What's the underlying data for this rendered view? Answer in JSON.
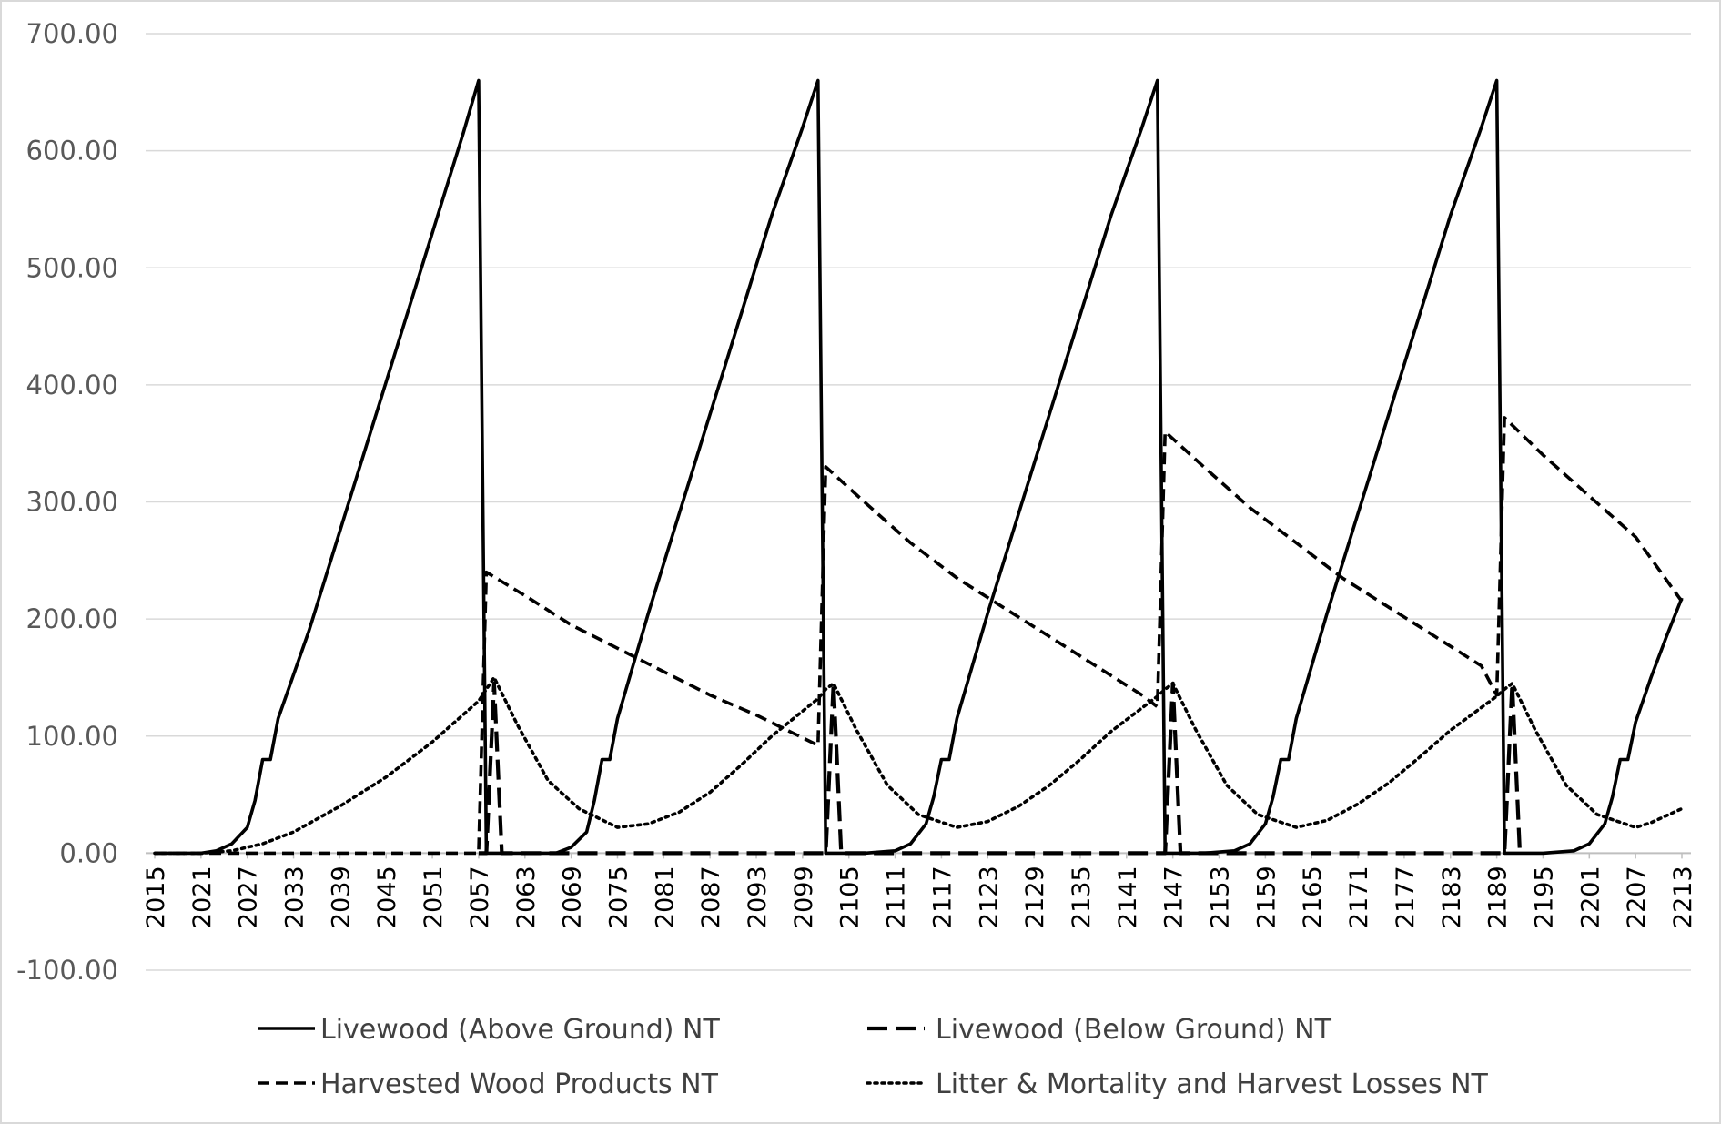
{
  "chart_data": {
    "type": "line",
    "title": "",
    "xlabel": "",
    "ylabel": "",
    "ylim": [
      -100,
      700
    ],
    "yticks": [
      "-100.00",
      "0.00",
      "100.00",
      "200.00",
      "300.00",
      "400.00",
      "500.00",
      "600.00",
      "700.00"
    ],
    "xlim": [
      2015,
      2213
    ],
    "xticks": [
      "2015",
      "2021",
      "2027",
      "2033",
      "2039",
      "2045",
      "2051",
      "2057",
      "2063",
      "2069",
      "2075",
      "2081",
      "2087",
      "2093",
      "2099",
      "2105",
      "2111",
      "2117",
      "2123",
      "2129",
      "2135",
      "2141",
      "2147",
      "2153",
      "2159",
      "2165",
      "2171",
      "2177",
      "2183",
      "2189",
      "2195",
      "2201",
      "2207",
      "2213"
    ],
    "grid": "horizontal",
    "legend_position": "bottom",
    "colors": {
      "series": "#000000",
      "grid": "#d9d9d9",
      "axis": "#bfbfbf",
      "tick_text": "#595959"
    },
    "series": [
      {
        "name": "Livewood (Above Ground) NT",
        "style": "solid",
        "points": [
          [
            2015,
            0
          ],
          [
            2021,
            0
          ],
          [
            2023,
            2
          ],
          [
            2025,
            8
          ],
          [
            2027,
            22
          ],
          [
            2028,
            45
          ],
          [
            2029,
            80
          ],
          [
            2030,
            80
          ],
          [
            2031,
            115
          ],
          [
            2035,
            190
          ],
          [
            2039,
            275
          ],
          [
            2043,
            360
          ],
          [
            2047,
            445
          ],
          [
            2051,
            530
          ],
          [
            2055,
            615
          ],
          [
            2057,
            660
          ],
          [
            2058,
            0
          ],
          [
            2063,
            0
          ],
          [
            2067,
            0
          ],
          [
            2069,
            5
          ],
          [
            2071,
            18
          ],
          [
            2072,
            45
          ],
          [
            2073,
            80
          ],
          [
            2074,
            80
          ],
          [
            2075,
            115
          ],
          [
            2079,
            205
          ],
          [
            2083,
            290
          ],
          [
            2087,
            375
          ],
          [
            2091,
            460
          ],
          [
            2095,
            545
          ],
          [
            2099,
            620
          ],
          [
            2101,
            660
          ],
          [
            2102,
            0
          ],
          [
            2107,
            0
          ],
          [
            2111,
            2
          ],
          [
            2113,
            8
          ],
          [
            2115,
            25
          ],
          [
            2116,
            48
          ],
          [
            2117,
            80
          ],
          [
            2118,
            80
          ],
          [
            2119,
            115
          ],
          [
            2123,
            205
          ],
          [
            2127,
            290
          ],
          [
            2131,
            375
          ],
          [
            2135,
            460
          ],
          [
            2139,
            545
          ],
          [
            2143,
            620
          ],
          [
            2145,
            660
          ],
          [
            2146,
            0
          ],
          [
            2151,
            0
          ],
          [
            2155,
            2
          ],
          [
            2157,
            8
          ],
          [
            2159,
            25
          ],
          [
            2160,
            48
          ],
          [
            2161,
            80
          ],
          [
            2162,
            80
          ],
          [
            2163,
            115
          ],
          [
            2167,
            205
          ],
          [
            2171,
            290
          ],
          [
            2175,
            375
          ],
          [
            2179,
            460
          ],
          [
            2183,
            545
          ],
          [
            2187,
            620
          ],
          [
            2189,
            660
          ],
          [
            2190,
            0
          ],
          [
            2195,
            0
          ],
          [
            2199,
            2
          ],
          [
            2201,
            8
          ],
          [
            2203,
            25
          ],
          [
            2204,
            48
          ],
          [
            2205,
            80
          ],
          [
            2206,
            80
          ],
          [
            2207,
            112
          ],
          [
            2209,
            150
          ],
          [
            2211,
            185
          ],
          [
            2213,
            218
          ]
        ]
      },
      {
        "name": "Livewood (Below Ground) NT",
        "style": "long-dash",
        "points": [
          [
            2057,
            0
          ],
          [
            2058,
            0
          ],
          [
            2059,
            145
          ],
          [
            2060,
            0
          ],
          [
            2101,
            0
          ],
          [
            2102,
            0
          ],
          [
            2103,
            145
          ],
          [
            2104,
            0
          ],
          [
            2145,
            0
          ],
          [
            2146,
            0
          ],
          [
            2147,
            145
          ],
          [
            2148,
            0
          ],
          [
            2189,
            0
          ],
          [
            2190,
            0
          ],
          [
            2191,
            145
          ],
          [
            2192,
            0
          ]
        ]
      },
      {
        "name": "Harvested Wood Products NT",
        "style": "dash",
        "points": [
          [
            2015,
            0
          ],
          [
            2056,
            0
          ],
          [
            2057,
            0
          ],
          [
            2058,
            240
          ],
          [
            2063,
            220
          ],
          [
            2069,
            195
          ],
          [
            2075,
            175
          ],
          [
            2081,
            155
          ],
          [
            2087,
            135
          ],
          [
            2093,
            118
          ],
          [
            2101,
            92
          ],
          [
            2102,
            330
          ],
          [
            2107,
            300
          ],
          [
            2113,
            265
          ],
          [
            2119,
            235
          ],
          [
            2125,
            210
          ],
          [
            2131,
            185
          ],
          [
            2137,
            160
          ],
          [
            2143,
            135
          ],
          [
            2145,
            125
          ],
          [
            2146,
            360
          ],
          [
            2151,
            330
          ],
          [
            2157,
            295
          ],
          [
            2163,
            265
          ],
          [
            2169,
            235
          ],
          [
            2175,
            210
          ],
          [
            2181,
            185
          ],
          [
            2187,
            160
          ],
          [
            2189,
            135
          ],
          [
            2190,
            372
          ],
          [
            2195,
            340
          ],
          [
            2201,
            305
          ],
          [
            2207,
            270
          ],
          [
            2213,
            215
          ]
        ]
      },
      {
        "name": "Litter & Mortality and Harvest Losses NT",
        "style": "dot",
        "points": [
          [
            2015,
            0
          ],
          [
            2021,
            0
          ],
          [
            2025,
            2
          ],
          [
            2029,
            8
          ],
          [
            2033,
            18
          ],
          [
            2039,
            40
          ],
          [
            2045,
            65
          ],
          [
            2051,
            95
          ],
          [
            2057,
            130
          ],
          [
            2058,
            140
          ],
          [
            2059,
            150
          ],
          [
            2062,
            110
          ],
          [
            2066,
            62
          ],
          [
            2070,
            38
          ],
          [
            2075,
            22
          ],
          [
            2079,
            25
          ],
          [
            2083,
            35
          ],
          [
            2087,
            52
          ],
          [
            2091,
            75
          ],
          [
            2095,
            100
          ],
          [
            2101,
            132
          ],
          [
            2102,
            140
          ],
          [
            2103,
            145
          ],
          [
            2106,
            105
          ],
          [
            2110,
            58
          ],
          [
            2114,
            33
          ],
          [
            2119,
            22
          ],
          [
            2123,
            27
          ],
          [
            2127,
            40
          ],
          [
            2131,
            58
          ],
          [
            2135,
            80
          ],
          [
            2139,
            104
          ],
          [
            2145,
            134
          ],
          [
            2146,
            140
          ],
          [
            2147,
            145
          ],
          [
            2150,
            105
          ],
          [
            2154,
            58
          ],
          [
            2158,
            33
          ],
          [
            2163,
            22
          ],
          [
            2167,
            28
          ],
          [
            2171,
            42
          ],
          [
            2175,
            60
          ],
          [
            2179,
            82
          ],
          [
            2183,
            105
          ],
          [
            2189,
            134
          ],
          [
            2190,
            140
          ],
          [
            2191,
            145
          ],
          [
            2194,
            105
          ],
          [
            2198,
            58
          ],
          [
            2202,
            33
          ],
          [
            2207,
            22
          ],
          [
            2209,
            26
          ],
          [
            2213,
            38
          ]
        ]
      }
    ]
  }
}
